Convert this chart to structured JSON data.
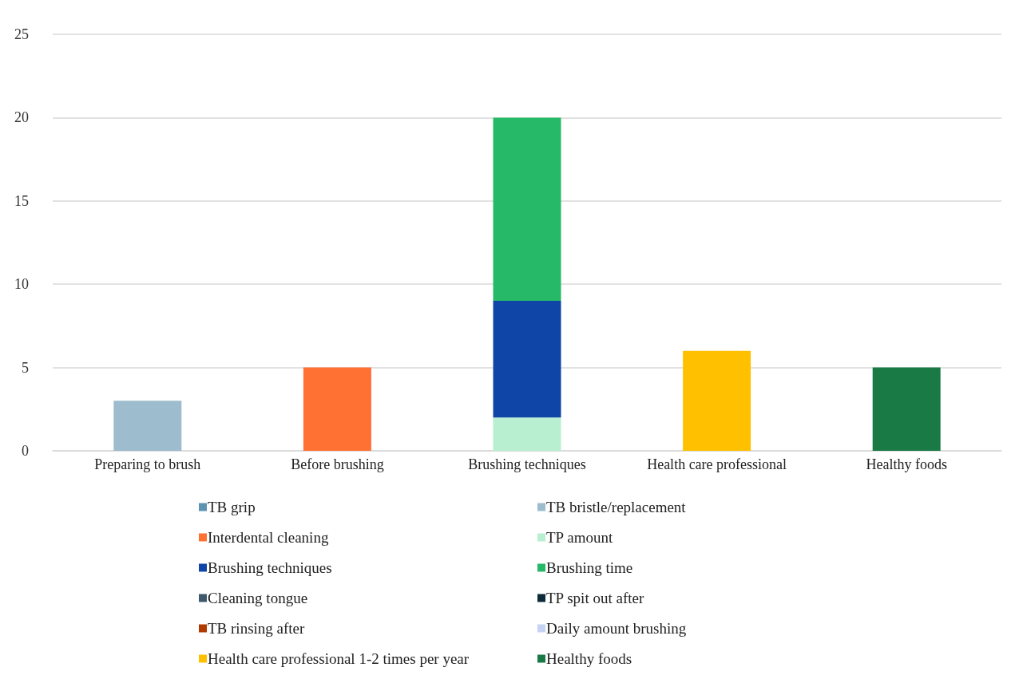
{
  "chart_data": {
    "type": "bar",
    "stacked": true,
    "categories": [
      "Preparing to brush",
      "Before brushing",
      "Brushing techniques",
      "Health care professional",
      "Healthy foods"
    ],
    "series": [
      {
        "name": "TB grip",
        "color": "#5b93b0",
        "values": [
          null,
          null,
          null,
          null,
          null
        ]
      },
      {
        "name": "TB bristle/replacement",
        "color": "#9dbccd",
        "values": [
          3,
          null,
          null,
          null,
          null
        ]
      },
      {
        "name": "Interdental cleaning",
        "color": "#ff7033",
        "values": [
          null,
          5,
          null,
          null,
          null
        ]
      },
      {
        "name": "TP amount",
        "color": "#b8efd0",
        "values": [
          null,
          null,
          2,
          null,
          null
        ]
      },
      {
        "name": "Brushing techniques",
        "color": "#1045a8",
        "values": [
          null,
          null,
          7,
          null,
          null
        ]
      },
      {
        "name": "Brushing time",
        "color": "#26b967",
        "values": [
          null,
          null,
          11,
          null,
          null
        ]
      },
      {
        "name": "Cleaning tongue",
        "color": "#3d5a6c",
        "values": [
          null,
          null,
          null,
          null,
          null
        ]
      },
      {
        "name": "TP spit out after",
        "color": "#0d2a3a",
        "values": [
          null,
          null,
          null,
          null,
          null
        ]
      },
      {
        "name": "TB rinsing after",
        "color": "#b03a00",
        "values": [
          null,
          null,
          null,
          null,
          null
        ]
      },
      {
        "name": "Daily amount brushing",
        "color": "#c5d3f5",
        "values": [
          null,
          null,
          null,
          null,
          null
        ]
      },
      {
        "name": "Health care professional 1-2 times per year",
        "color": "#ffc000",
        "values": [
          null,
          null,
          null,
          6,
          null
        ]
      },
      {
        "name": "Healthy foods",
        "color": "#1a7a45",
        "values": [
          null,
          null,
          null,
          null,
          5
        ]
      }
    ],
    "ylim": [
      0,
      25
    ],
    "yticks": [
      0,
      5,
      10,
      15,
      20,
      25
    ],
    "grid": "y",
    "legend": "bottom"
  }
}
